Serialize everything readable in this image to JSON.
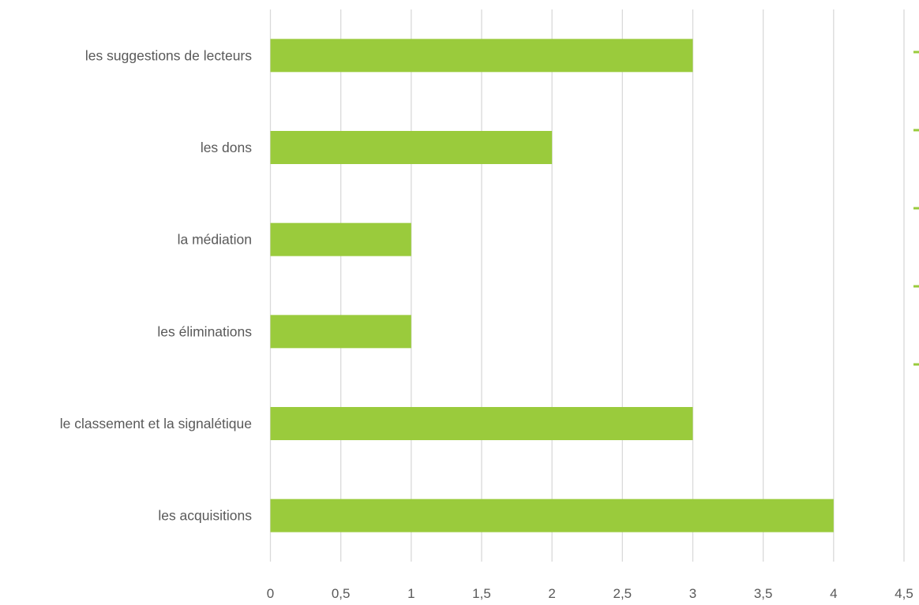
{
  "chart_data": {
    "type": "bar",
    "orientation": "horizontal",
    "categories": [
      "les suggestions de lecteurs",
      "les dons",
      "la médiation",
      "les éliminations",
      "le classement et la signalétique",
      "les acquisitions"
    ],
    "values": [
      3,
      2,
      1,
      1,
      3,
      4
    ],
    "xlim": [
      0,
      4.5
    ],
    "x_ticks": [
      {
        "value": 0,
        "label": "0"
      },
      {
        "value": 0.5,
        "label": "0,5"
      },
      {
        "value": 1,
        "label": "1"
      },
      {
        "value": 1.5,
        "label": "1,5"
      },
      {
        "value": 2,
        "label": "2"
      },
      {
        "value": 2.5,
        "label": "2,5"
      },
      {
        "value": 3,
        "label": "3"
      },
      {
        "value": 3.5,
        "label": "3,5"
      },
      {
        "value": 4,
        "label": "4"
      },
      {
        "value": 4.5,
        "label": "4,5"
      }
    ],
    "title": "",
    "xlabel": "",
    "ylabel": "",
    "grid": "vertical",
    "legend": "right (cropped, entries not visible)",
    "legend_entries_visible": 5
  },
  "colors": {
    "bar": "#9ACB3C",
    "grid": "#D9D9D9",
    "text": "#595959"
  }
}
